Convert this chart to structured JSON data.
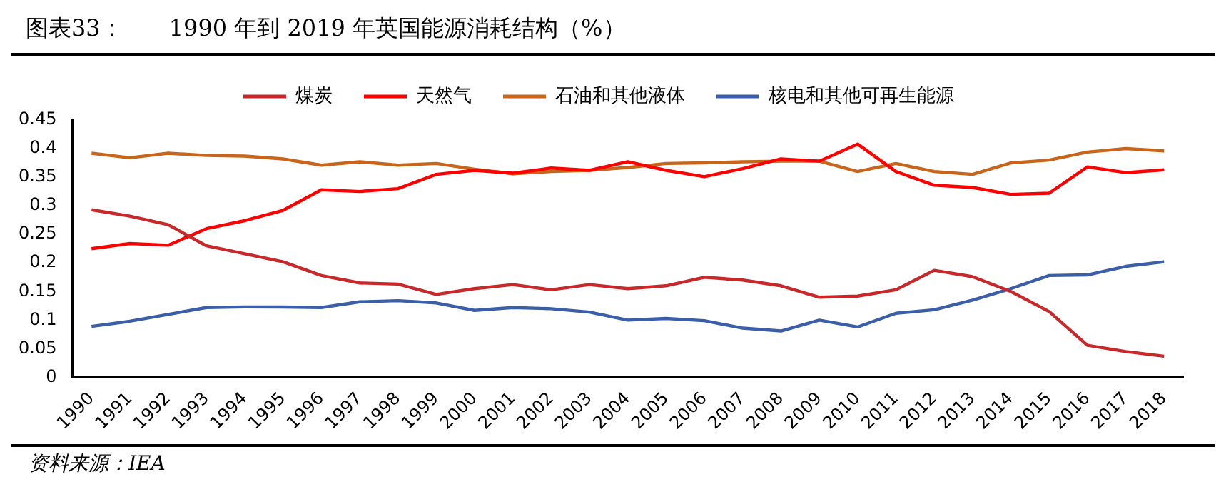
{
  "chart_data": {
    "type": "line",
    "title": "图表33：　　1990 年到 2019 年英国能源消耗结构（%）",
    "categories": [
      "1990",
      "1991",
      "1992",
      "1993",
      "1994",
      "1995",
      "1996",
      "1997",
      "1998",
      "1999",
      "2000",
      "2001",
      "2002",
      "2003",
      "2004",
      "2005",
      "2006",
      "2007",
      "2008",
      "2009",
      "2010",
      "2011",
      "2012",
      "2013",
      "2014",
      "2015",
      "2016",
      "2017",
      "2018"
    ],
    "series": [
      {
        "name": "煤炭",
        "color": "#c8282a",
        "values": [
          0.293,
          0.282,
          0.267,
          0.23,
          0.216,
          0.202,
          0.178,
          0.165,
          0.163,
          0.145,
          0.155,
          0.162,
          0.153,
          0.162,
          0.155,
          0.16,
          0.175,
          0.17,
          0.16,
          0.14,
          0.142,
          0.153,
          0.187,
          0.176,
          0.15,
          0.115,
          0.056,
          0.045,
          0.037
        ]
      },
      {
        "name": "天然气",
        "color": "#ff0000",
        "values": [
          0.225,
          0.234,
          0.231,
          0.26,
          0.274,
          0.292,
          0.328,
          0.325,
          0.33,
          0.355,
          0.362,
          0.357,
          0.366,
          0.362,
          0.377,
          0.362,
          0.351,
          0.365,
          0.382,
          0.378,
          0.408,
          0.36,
          0.336,
          0.332,
          0.32,
          0.322,
          0.368,
          0.358,
          0.363
        ]
      },
      {
        "name": "石油和其他液体",
        "color": "#c8651b",
        "values": [
          0.392,
          0.384,
          0.392,
          0.388,
          0.387,
          0.382,
          0.371,
          0.377,
          0.371,
          0.374,
          0.364,
          0.356,
          0.36,
          0.362,
          0.367,
          0.374,
          0.375,
          0.377,
          0.378,
          0.378,
          0.36,
          0.374,
          0.36,
          0.355,
          0.375,
          0.38,
          0.394,
          0.4,
          0.396
        ]
      },
      {
        "name": "核电和其他可再生能源",
        "color": "#3a5ea8",
        "values": [
          0.089,
          0.098,
          0.11,
          0.122,
          0.123,
          0.123,
          0.122,
          0.132,
          0.134,
          0.13,
          0.117,
          0.122,
          0.12,
          0.114,
          0.1,
          0.103,
          0.099,
          0.086,
          0.081,
          0.1,
          0.088,
          0.112,
          0.118,
          0.135,
          0.155,
          0.178,
          0.179,
          0.194,
          0.202
        ]
      }
    ],
    "ylim": [
      0,
      0.45
    ],
    "yticks": [
      0,
      0.05,
      0.1,
      0.15,
      0.2,
      0.25,
      0.3,
      0.35,
      0.4,
      0.45
    ],
    "grid": false,
    "legend": "top",
    "marker": "none",
    "line_style": "solid",
    "annotations": [
      "资料来源：IEA"
    ]
  }
}
